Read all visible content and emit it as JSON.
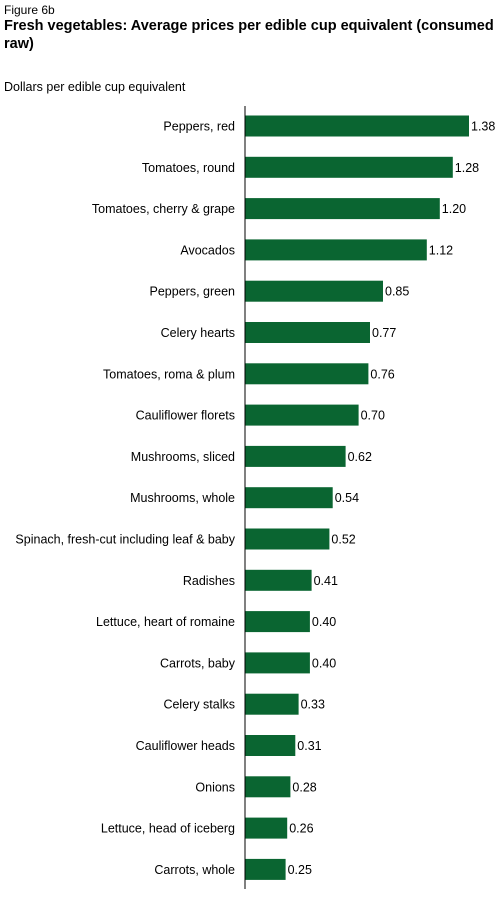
{
  "figure_label": "Figure 6b",
  "colors": {
    "bar": "#0a6531",
    "axis": "#000000"
  },
  "chart_data": {
    "type": "bar",
    "orientation": "horizontal",
    "title": "Fresh vegetables: Average prices per edible cup equivalent (consumed raw)",
    "unit_label": "Dollars per edible cup equivalent",
    "categories": [
      "Peppers, red",
      "Tomatoes, round",
      "Tomatoes, cherry & grape",
      "Avocados",
      "Peppers, green",
      "Celery hearts",
      "Tomatoes, roma & plum",
      "Cauliflower florets",
      "Mushrooms, sliced",
      "Mushrooms, whole",
      "Spinach, fresh-cut including leaf & baby",
      "Radishes",
      "Lettuce, heart of romaine",
      "Carrots, baby",
      "Celery stalks",
      "Cauliflower heads",
      "Onions",
      "Lettuce, head of iceberg",
      "Carrots, whole"
    ],
    "values": [
      1.38,
      1.28,
      1.2,
      1.12,
      0.85,
      0.77,
      0.76,
      0.7,
      0.62,
      0.54,
      0.52,
      0.41,
      0.4,
      0.4,
      0.33,
      0.31,
      0.28,
      0.26,
      0.25
    ],
    "value_labels": [
      "1.38",
      "1.28",
      "1.20",
      "1.12",
      "0.85",
      "0.77",
      "0.76",
      "0.70",
      "0.62",
      "0.54",
      "0.52",
      "0.41",
      "0.40",
      "0.40",
      "0.33",
      "0.31",
      "0.28",
      "0.26",
      "0.25"
    ],
    "xlim": [
      0,
      1.4
    ],
    "grid": false,
    "legend": "none"
  }
}
